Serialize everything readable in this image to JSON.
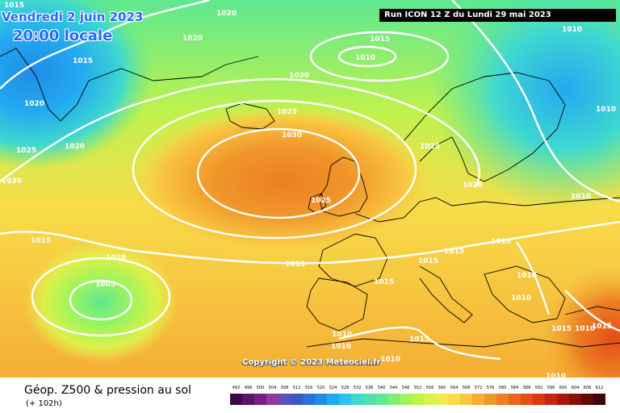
{
  "header": {
    "date": "Vendredi 2 juin 2023",
    "local_time": "20:00 locale",
    "run_info": "Run ICON 12 Z du Lundi 29 mai 2023"
  },
  "map": {
    "copyright": "Copyright © 2023 Meteociel.fr",
    "isobar_labels": [
      "1015",
      "1020",
      "1020",
      "1015",
      "1010",
      "1015",
      "1020",
      "1020",
      "1025",
      "1020",
      "1010",
      "1010",
      "1025",
      "1030",
      "1025",
      "1025",
      "1030",
      "1020",
      "1010",
      "1015",
      "1010",
      "1005",
      "1015",
      "1015",
      "1015",
      "1010",
      "1015",
      "1010",
      "1010",
      "1010",
      "1015",
      "1010",
      "1010",
      "1015",
      "1010",
      "1015",
      "1010"
    ]
  },
  "footer": {
    "title": "Géop. Z500 & pression au sol",
    "subtitle": "(+ 102h)"
  },
  "legend": {
    "ticks": [
      "492",
      "496",
      "500",
      "504",
      "508",
      "512",
      "516",
      "520",
      "524",
      "528",
      "532",
      "536",
      "540",
      "544",
      "548",
      "552",
      "556",
      "560",
      "564",
      "568",
      "572",
      "576",
      "580",
      "584",
      "588",
      "592",
      "596",
      "600",
      "604",
      "608",
      "612"
    ],
    "colors": [
      "#3c0a4a",
      "#5a1466",
      "#781f85",
      "#8f3aa3",
      "#5f4fb8",
      "#3a58c4",
      "#2a72d6",
      "#1f8ce8",
      "#22a9f0",
      "#2cc4ea",
      "#3fd8d0",
      "#4fe0b0",
      "#5ee890",
      "#7aef74",
      "#9ef45c",
      "#c0f24c",
      "#dcf04a",
      "#f0ec4e",
      "#f8dc4a",
      "#f8c640",
      "#f4ae34",
      "#f0962a",
      "#ec7e22",
      "#e8661c",
      "#e44e18",
      "#de3614",
      "#c82410",
      "#a8180c",
      "#841008",
      "#600a06",
      "#3e0604"
    ]
  }
}
